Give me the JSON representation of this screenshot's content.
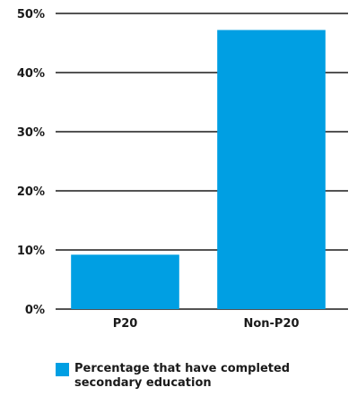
{
  "chart_data": {
    "type": "bar",
    "categories": [
      "P20",
      "Non-P20"
    ],
    "series": [
      {
        "name": "Percentage that have completed secondary education",
        "values": [
          9.2,
          47.2
        ]
      }
    ],
    "ylim": [
      0,
      50
    ],
    "yticks": [
      0,
      10,
      20,
      30,
      40,
      50
    ],
    "ytick_labels": [
      "0%",
      "10%",
      "20%",
      "30%",
      "40%",
      "50%"
    ],
    "grid": true,
    "legend_position": "bottom-left",
    "bar_color": "#009fe3"
  }
}
